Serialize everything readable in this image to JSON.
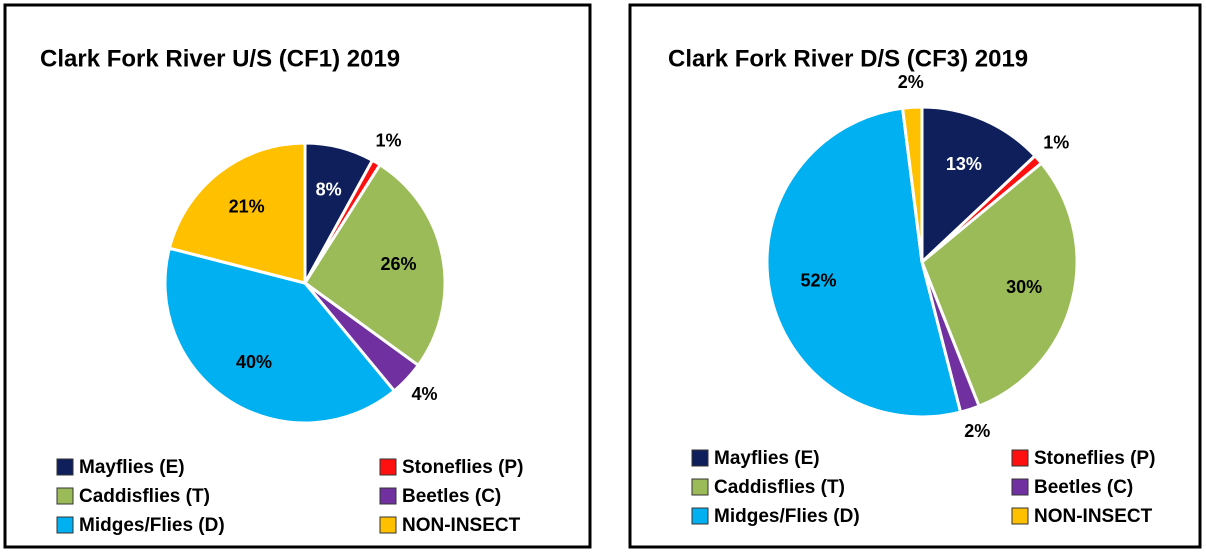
{
  "chart_data": [
    {
      "type": "pie",
      "title": "Clark Fork River U/S (CF1) 2019",
      "categories": [
        "Mayflies (E)",
        "Stoneflies (P)",
        "Caddisflies (T)",
        "Beetles (C)",
        "Midges/Flies (D)",
        "NON-INSECT"
      ],
      "values": [
        8,
        1,
        26,
        4,
        40,
        21
      ],
      "value_labels": [
        "8%",
        "1%",
        "26%",
        "4%",
        "40%",
        "21%"
      ],
      "colors": [
        "#0e1f5b",
        "#ff1010",
        "#9bbb59",
        "#7030a0",
        "#00b0f0",
        "#ffc000"
      ]
    },
    {
      "type": "pie",
      "title": "Clark Fork River D/S (CF3) 2019",
      "categories": [
        "Mayflies (E)",
        "Stoneflies (P)",
        "Caddisflies (T)",
        "Beetles (C)",
        "Midges/Flies (D)",
        "NON-INSECT"
      ],
      "values": [
        13,
        1,
        30,
        2,
        52,
        2
      ],
      "value_labels": [
        "13%",
        "1%",
        "30%",
        "2%",
        "52%",
        "2%"
      ],
      "colors": [
        "#0e1f5b",
        "#ff1010",
        "#9bbb59",
        "#7030a0",
        "#00b0f0",
        "#ffc000"
      ]
    }
  ]
}
